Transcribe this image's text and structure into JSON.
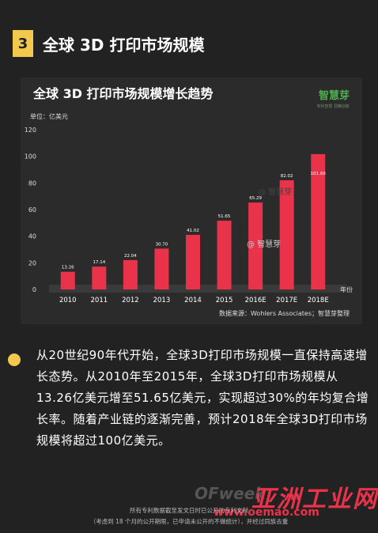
{
  "section": {
    "number": "3",
    "title": "全球 3D 打印市场规模"
  },
  "chart_card": {
    "title": "全球 3D 打印市场规模增长趋势",
    "brand": "智慧芽",
    "brand_sub": "专利智慧 洞察创新",
    "source": "数据来源：Wohlers Associates；智慧芽整理",
    "watermark_1": "@ 智慧芽",
    "watermark_2": "@ 智慧芽"
  },
  "chart_data": {
    "type": "bar",
    "unit_label": "单位：亿美元",
    "x_axis_label": "年份",
    "categories": [
      "2010",
      "2011",
      "2012",
      "2013",
      "2014",
      "2015",
      "2016E",
      "2017E",
      "2018E"
    ],
    "values": [
      13.26,
      17.14,
      22.04,
      30.7,
      41.02,
      51.65,
      65.29,
      82.02,
      101.66
    ],
    "value_labels": [
      "13.26",
      "17.14",
      "22.04",
      "30.70",
      "41.02",
      "51.65",
      "65.29",
      "82.02",
      "101.66"
    ],
    "ylim": [
      0,
      120
    ],
    "yticks": [
      0,
      20,
      40,
      60,
      80,
      100,
      120
    ],
    "bar_color": "#e8334a",
    "grid": false
  },
  "bullet": {
    "text": "从20世纪90年代开始，全球3D打印市场规模一直保持高速增长态势。从2010年至2015年，全球3D打印市场规模从13.26亿美元增至51.65亿美元，实现超过30%的年均复合增长率。随着产业链的逐渐完善，预计2018年全球3D打印市场规模将超过100亿美元。"
  },
  "footer": {
    "line1": "所有专利数据截至发文日时已公开的专利文献",
    "line2": "（考虑到 18 个月的公开期限，已申请未公开的不做统计），并经过同族去重",
    "watermark_ofweek": "OFweek",
    "watermark_site": "www.oemao.com",
    "watermark_cn": "亚洲工业网"
  },
  "colors": {
    "accent_yellow": "#f2c94c",
    "bar_red": "#e8334a",
    "brand_green": "#4caf50"
  }
}
